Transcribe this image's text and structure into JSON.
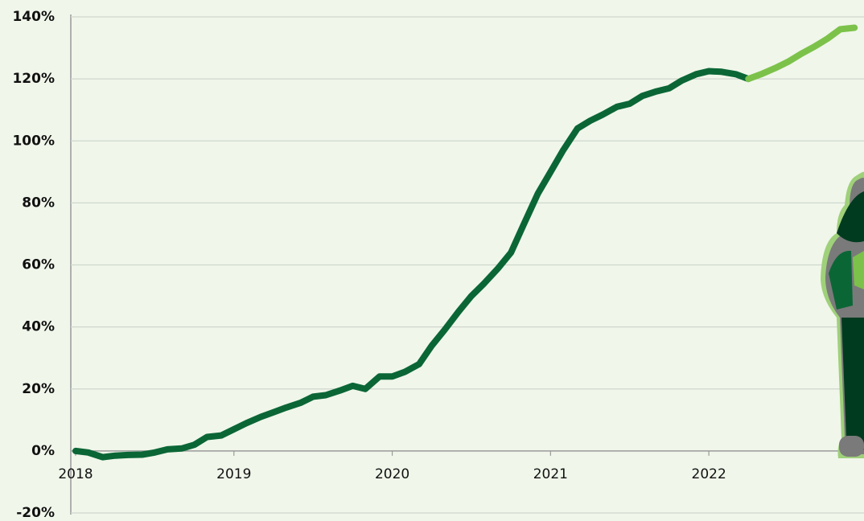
{
  "chart_data": {
    "type": "line",
    "x": [
      2018,
      2018.08,
      2018.17,
      2018.25,
      2018.33,
      2018.42,
      2018.5,
      2018.58,
      2018.67,
      2018.75,
      2018.83,
      2018.92,
      2019,
      2019.08,
      2019.17,
      2019.25,
      2019.33,
      2019.42,
      2019.5,
      2019.58,
      2019.67,
      2019.75,
      2019.83,
      2019.92,
      2020,
      2020.08,
      2020.17,
      2020.25,
      2020.33,
      2020.42,
      2020.5,
      2020.58,
      2020.67,
      2020.75,
      2020.83,
      2020.92,
      2021,
      2021.08,
      2021.17,
      2021.25,
      2021.33,
      2021.42,
      2021.5,
      2021.58,
      2021.67,
      2021.75,
      2021.83,
      2021.92,
      2022,
      2022.08,
      2022.17,
      2022.25,
      2022.33,
      2022.42,
      2022.5,
      2022.58,
      2022.67,
      2022.75,
      2022.83,
      2022.92
    ],
    "series": [
      {
        "color": "#0b6636",
        "values": [
          0,
          -0.5,
          -2,
          -1.5,
          -1.3,
          -1.2,
          -0.5,
          0.5,
          0.8,
          2,
          4.5,
          5,
          7,
          9,
          11,
          12.5,
          14,
          15.5,
          17.5,
          18,
          19.5,
          21,
          20,
          24,
          24,
          25.5,
          28,
          34,
          39,
          45,
          50,
          54,
          59,
          64,
          73,
          83,
          90,
          97,
          104,
          106.5,
          108.5,
          111,
          112,
          114.5,
          116,
          117,
          119.5,
          121.5,
          122.5,
          122.3,
          121.5,
          120,
          null,
          null,
          null,
          null,
          null,
          null,
          null,
          null
        ]
      },
      {
        "color": "#7cc24a",
        "values": [
          null,
          null,
          null,
          null,
          null,
          null,
          null,
          null,
          null,
          null,
          null,
          null,
          null,
          null,
          null,
          null,
          null,
          null,
          null,
          null,
          null,
          null,
          null,
          null,
          null,
          null,
          null,
          null,
          null,
          null,
          null,
          null,
          null,
          null,
          null,
          null,
          null,
          null,
          null,
          null,
          null,
          null,
          null,
          null,
          null,
          null,
          null,
          null,
          null,
          null,
          null,
          120,
          121.5,
          123.5,
          125.5,
          128,
          130.5,
          133,
          136,
          136.5
        ]
      }
    ],
    "xlim": [
      2018,
      2022.98
    ],
    "xticks": [
      2018,
      2019,
      2020,
      2021,
      2022
    ],
    "ylim": [
      -20,
      140
    ],
    "yticks": [
      {
        "value": -20,
        "label": "-20%"
      },
      {
        "value": 0,
        "label": "0%"
      },
      {
        "value": 20,
        "label": "20%"
      },
      {
        "value": 40,
        "label": "40%"
      },
      {
        "value": 60,
        "label": "60%"
      },
      {
        "value": 80,
        "label": "80%"
      },
      {
        "value": 100,
        "label": "100%"
      },
      {
        "value": 120,
        "label": "120%"
      },
      {
        "value": 140,
        "label": "140%"
      }
    ],
    "grid": true
  }
}
